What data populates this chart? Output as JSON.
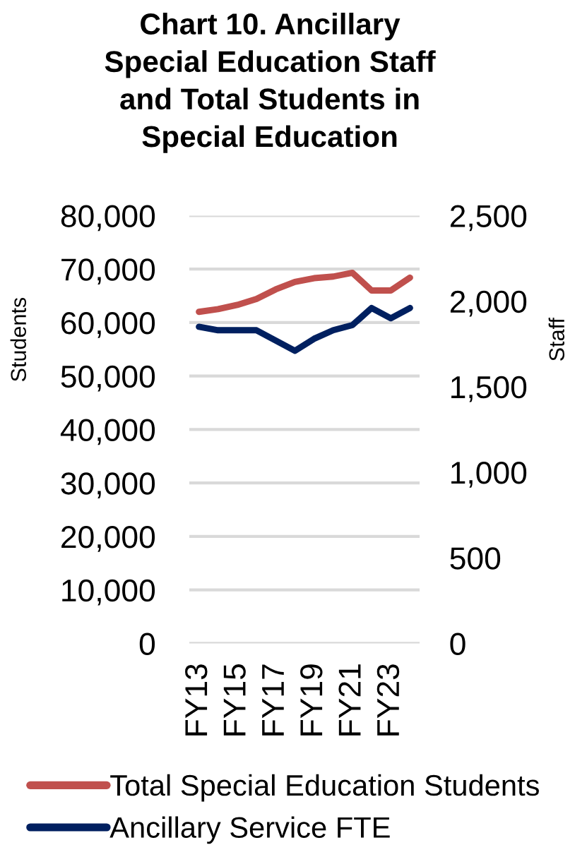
{
  "chart_data": {
    "type": "line",
    "title": "Chart 10. Ancillary\nSpecial Education Staff\nand Total Students in\nSpecial Education",
    "ylabel": "Students",
    "y2label": "Staff",
    "categories": [
      "FY13",
      null,
      "FY15",
      null,
      "FY17",
      null,
      "FY19",
      null,
      "FY21",
      null,
      "FY23",
      null
    ],
    "series": [
      {
        "name": "Total Special Education Students",
        "color": "#c0504d",
        "values": [
          62000,
          62500,
          63300,
          64400,
          66200,
          67600,
          68300,
          68600,
          69300,
          66000,
          66000,
          68400
        ]
      },
      {
        "name": "Ancillary Service FTE",
        "color": "#002060",
        "axis": "y2",
        "values": [
          1850,
          1830,
          1830,
          1830,
          1770,
          1710,
          1780,
          1830,
          1860,
          1960,
          1900,
          1960
        ]
      }
    ],
    "ylim": [
      0,
      80000
    ],
    "yticks": [
      {
        "value": 0,
        "label": "0"
      },
      {
        "value": 10000,
        "label": "10,000"
      },
      {
        "value": 20000,
        "label": "20,000"
      },
      {
        "value": 30000,
        "label": "30,000"
      },
      {
        "value": 40000,
        "label": "40,000"
      },
      {
        "value": 50000,
        "label": "50,000"
      },
      {
        "value": 60000,
        "label": "60,000"
      },
      {
        "value": 70000,
        "label": "70,000"
      },
      {
        "value": 80000,
        "label": "80,000"
      }
    ],
    "y2lim": [
      0,
      2500
    ],
    "y2ticks": [
      {
        "value": 0,
        "label": "0"
      },
      {
        "value": 500,
        "label": "500"
      },
      {
        "value": 1000,
        "label": "1,000"
      },
      {
        "value": 1500,
        "label": "1,500"
      },
      {
        "value": 2000,
        "label": "2,000"
      },
      {
        "value": 2500,
        "label": "2,500"
      }
    ],
    "grid": "y",
    "legend": "bottom",
    "marker": "none",
    "line_style": "solid"
  }
}
